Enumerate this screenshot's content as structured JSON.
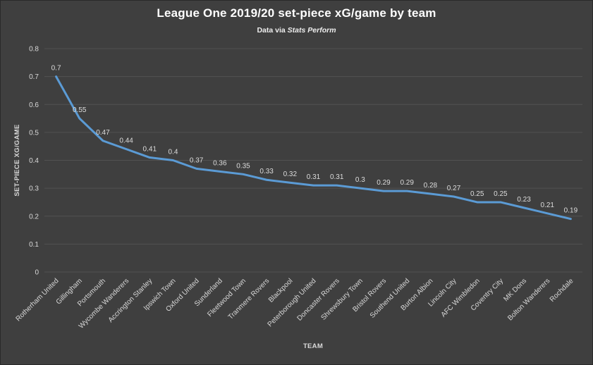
{
  "chart_data": {
    "type": "line",
    "title": "League One 2019/20 set-piece xG/game by team",
    "subtitle_prefix": "Data via ",
    "subtitle_italic": "Stats Perform",
    "xlabel": "TEAM",
    "ylabel": "SET-PIECE XG/GAME",
    "ylim": [
      0,
      0.8
    ],
    "y_ticks": [
      0,
      0.1,
      0.2,
      0.3,
      0.4,
      0.5,
      0.6,
      0.7,
      0.8
    ],
    "grid": true,
    "legend": "none",
    "categories": [
      "Rotherham United",
      "Gillingham",
      "Portsmouth",
      "Wycombe Wanderers",
      "Accrington Stanley",
      "Ipswich Town",
      "Oxford United",
      "Sunderland",
      "Fleetwood Town",
      "Tranmere Rovers",
      "Blackpool",
      "Peterborough United",
      "Doncaster Rovers",
      "Shrewsbury Town",
      "Bristol Rovers",
      "Southend United",
      "Burton Albion",
      "Lincoln City",
      "AFC Wimbledon",
      "Coventry City",
      "MK Dons",
      "Bolton Wanderers",
      "Rochdale"
    ],
    "values": [
      0.7,
      0.55,
      0.47,
      0.44,
      0.41,
      0.4,
      0.37,
      0.36,
      0.35,
      0.33,
      0.32,
      0.31,
      0.31,
      0.3,
      0.29,
      0.29,
      0.28,
      0.27,
      0.25,
      0.25,
      0.23,
      0.21,
      0.19
    ],
    "theme": {
      "background": "#3F3F3F",
      "grid_color": "#525252",
      "text_color": "#D9D9D9",
      "title_color": "#FFFFFF",
      "line_color": "#5B9BD5"
    }
  }
}
